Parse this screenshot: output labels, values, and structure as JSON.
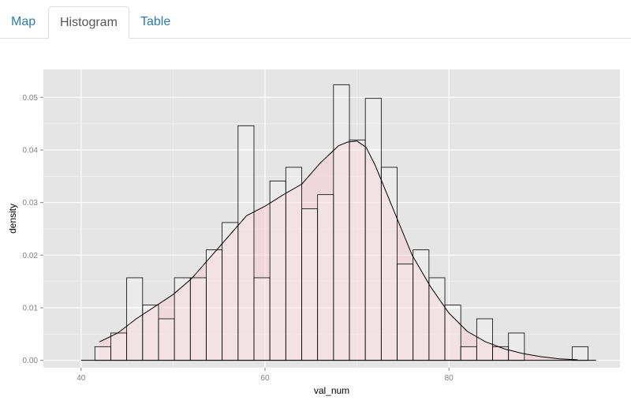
{
  "tabs": [
    {
      "label": "Map",
      "active": false
    },
    {
      "label": "Histogram",
      "active": true
    },
    {
      "label": "Table",
      "active": false
    }
  ],
  "colors": {
    "panel_bg": "#e5e5e5",
    "grid": "#ffffff",
    "bar_fill": "#ffffff",
    "bar_stroke": "#000000",
    "density_fill": "#ffc0cb",
    "tab_link": "#2a7ab5",
    "tab_active": "#555555"
  },
  "chart_data": {
    "type": "histogram",
    "xlabel": "val_num",
    "ylabel": "density",
    "xlim": [
      35.9,
      98.6
    ],
    "ylim": [
      -0.0014,
      0.0553
    ],
    "x_ticks": [
      40,
      60,
      80
    ],
    "x_tick_labels": [
      "40",
      "60",
      "80"
    ],
    "y_ticks": [
      0,
      0.01,
      0.02,
      0.03,
      0.04,
      0.05
    ],
    "y_tick_labels": [
      "0.00",
      "0.01",
      "0.02",
      "0.03",
      "0.04",
      "0.05"
    ],
    "grid": true,
    "bin_width": 1.73,
    "bin_starts": [
      41.5,
      43.23,
      44.96,
      46.69,
      48.42,
      50.15,
      51.88,
      53.61,
      55.34,
      57.07,
      58.8,
      60.53,
      62.26,
      63.99,
      65.72,
      67.45,
      69.18,
      70.91,
      72.64,
      74.37,
      76.1,
      77.83,
      79.56,
      81.29,
      83.02,
      84.75,
      86.48,
      88.21,
      89.94,
      91.67,
      93.4
    ],
    "densities": [
      0.0026,
      0.0052,
      0.0157,
      0.0105,
      0.0079,
      0.0157,
      0.0157,
      0.021,
      0.0262,
      0.0446,
      0.0157,
      0.0341,
      0.0367,
      0.0288,
      0.0315,
      0.0524,
      0.0419,
      0.0498,
      0.0367,
      0.0183,
      0.021,
      0.0157,
      0.0105,
      0.0026,
      0.0079,
      0.0026,
      0.0052,
      0,
      0,
      0,
      0.0026
    ],
    "density_curve": {
      "x": [
        42,
        44,
        46,
        48,
        50,
        52,
        54,
        56,
        58,
        60,
        62,
        64,
        66,
        68,
        69,
        70,
        71,
        72,
        74,
        76,
        78,
        80,
        82,
        84,
        86,
        88,
        90,
        92,
        94
      ],
      "y": [
        0.0035,
        0.0052,
        0.0079,
        0.0102,
        0.0125,
        0.0155,
        0.0195,
        0.0235,
        0.0275,
        0.0293,
        0.0315,
        0.0335,
        0.0375,
        0.0408,
        0.0415,
        0.0417,
        0.0405,
        0.037,
        0.0285,
        0.02,
        0.014,
        0.009,
        0.0055,
        0.0035,
        0.0022,
        0.0013,
        0.0007,
        0.0003,
        0.0001
      ]
    }
  }
}
